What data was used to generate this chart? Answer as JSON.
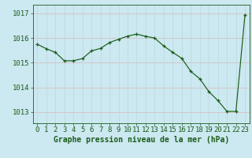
{
  "x": [
    0,
    1,
    2,
    3,
    4,
    5,
    6,
    7,
    8,
    9,
    10,
    11,
    12,
    13,
    14,
    15,
    16,
    17,
    18,
    19,
    20,
    21,
    22,
    23
  ],
  "y": [
    1015.75,
    1015.57,
    1015.42,
    1015.08,
    1015.08,
    1015.17,
    1015.48,
    1015.58,
    1015.82,
    1015.95,
    1016.08,
    1016.16,
    1016.07,
    1016.0,
    1015.68,
    1015.42,
    1015.18,
    1014.65,
    1014.35,
    1013.83,
    1013.47,
    1013.03,
    1013.03,
    1016.95
  ],
  "xlim": [
    -0.5,
    23.5
  ],
  "ylim": [
    1012.55,
    1017.35
  ],
  "yticks": [
    1013,
    1014,
    1015,
    1016,
    1017
  ],
  "xticks": [
    0,
    1,
    2,
    3,
    4,
    5,
    6,
    7,
    8,
    9,
    10,
    11,
    12,
    13,
    14,
    15,
    16,
    17,
    18,
    19,
    20,
    21,
    22,
    23
  ],
  "line_color": "#1a5c1a",
  "marker_color": "#1a5c1a",
  "bg_color": "#cce8f0",
  "grid_color_v": "#b8d8e0",
  "grid_color_h": "#d8b8b8",
  "xlabel": "Graphe pression niveau de la mer (hPa)",
  "xlabel_color": "#1a5c1a",
  "xlabel_fontsize": 7.0,
  "tick_label_color": "#1a5c1a",
  "tick_fontsize": 6.5,
  "ytick_fontsize": 6.5
}
